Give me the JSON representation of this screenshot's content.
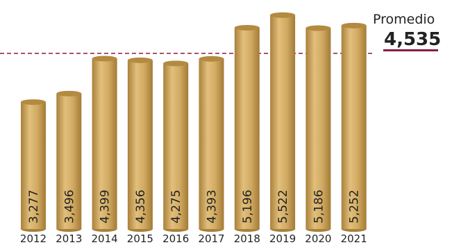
{
  "chart_data": {
    "type": "bar",
    "categories": [
      "2012",
      "2013",
      "2014",
      "2015",
      "2016",
      "2017",
      "2018",
      "2019",
      "2020",
      "2021"
    ],
    "values": [
      3277,
      3496,
      4399,
      4356,
      4275,
      4393,
      5196,
      5522,
      5186,
      5252
    ],
    "value_labels": [
      "3,277",
      "3,496",
      "4,399",
      "4,356",
      "4,275",
      "4,393",
      "5,196",
      "5,522",
      "5,186",
      "5,252"
    ],
    "title": "",
    "xlabel": "",
    "ylabel": "",
    "ylim": [
      0,
      5600
    ],
    "grid": false,
    "legend": "none",
    "average": {
      "label": "Promedio",
      "value": 4535,
      "value_text": "4,535"
    },
    "colors": {
      "bar": "#c9a15c",
      "bar_light": "#e3c07d",
      "bar_dark": "#a37b35",
      "bar_top": "#b38a3f",
      "average_line": "#8b1a3c",
      "text": "#222222"
    }
  }
}
